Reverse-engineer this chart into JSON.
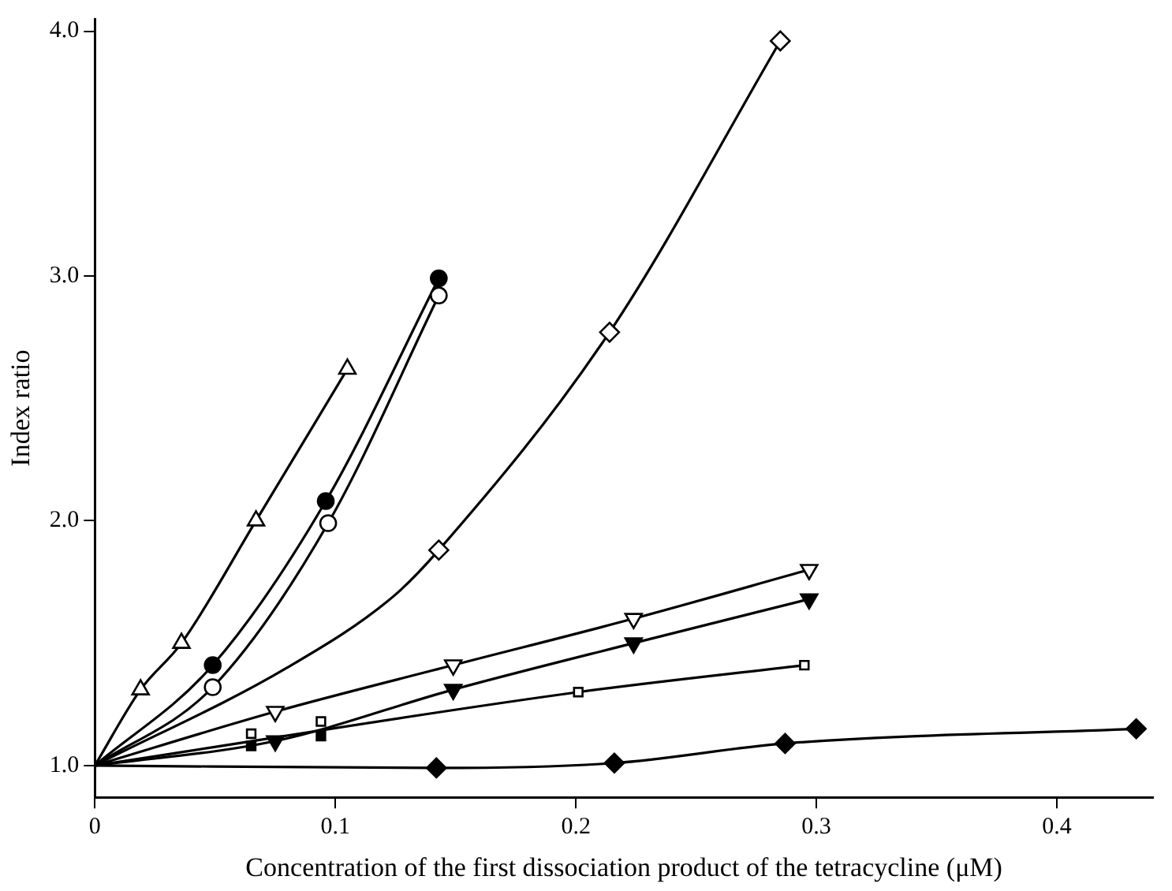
{
  "chart_data": {
    "type": "scatter",
    "xlabel": "Concentration of the first dissociation product of the tetracycline (μM)",
    "ylabel": "Index ratio",
    "xlim": [
      0,
      0.44
    ],
    "ylim": [
      0.87,
      4.05
    ],
    "xticks": [
      0,
      {
        "value": 0.1,
        "label": "0.1"
      },
      {
        "value": 0.2,
        "label": "0.2"
      },
      {
        "value": 0.3,
        "label": "0.3"
      },
      {
        "value": 0.4,
        "label": "0.4"
      }
    ],
    "yticks": [
      {
        "value": 1,
        "label": "1.0"
      },
      {
        "value": 2,
        "label": "2.0"
      },
      {
        "value": 3,
        "label": "3.0"
      },
      {
        "value": 4,
        "label": "4.0"
      }
    ],
    "grid": false,
    "legend": false,
    "series": [
      {
        "type": "line",
        "marker": "none",
        "color": "#000000",
        "x": [
          0,
          0.019,
          0.036,
          0.067,
          0.105
        ],
        "values": [
          1,
          1.31,
          1.5,
          2.0,
          2.62
        ]
      },
      {
        "type": "line",
        "marker": "none",
        "color": "#000000",
        "x": [
          0,
          0.049,
          0.096,
          0.143
        ],
        "values": [
          1,
          1.41,
          2.08,
          2.99
        ]
      },
      {
        "type": "line",
        "marker": "none",
        "color": "#000000",
        "x": [
          0,
          0.049,
          0.097,
          0.143
        ],
        "values": [
          1,
          1.32,
          1.99,
          2.92
        ]
      },
      {
        "type": "line",
        "marker": "none",
        "color": "#000000",
        "x": [
          0,
          0.08,
          0.124,
          0.143,
          0.214,
          0.285
        ],
        "values": [
          1,
          1.4,
          1.69,
          1.88,
          2.77,
          3.96
        ]
      },
      {
        "type": "line",
        "marker": "none",
        "color": "#000000",
        "x": [
          0,
          0.075,
          0.149,
          0.224,
          0.297
        ],
        "values": [
          1,
          1.22,
          1.41,
          1.6,
          1.8
        ]
      },
      {
        "type": "line",
        "marker": "none",
        "color": "#000000",
        "x": [
          0,
          0.075,
          0.149,
          0.224,
          0.297
        ],
        "values": [
          1,
          1.1,
          1.31,
          1.5,
          1.68
        ]
      },
      {
        "type": "line",
        "marker": "none",
        "color": "#000000",
        "x": [
          0,
          0.201,
          0.295
        ],
        "values": [
          1,
          1.3,
          1.41
        ]
      },
      {
        "type": "line",
        "marker": "none",
        "color": "#000000",
        "x": [
          0,
          0.142,
          0.216,
          0.287,
          0.433
        ],
        "values": [
          1,
          0.99,
          1.01,
          1.09,
          1.15
        ]
      },
      {
        "marker": "triangle",
        "color": "#ffffff",
        "x": [
          0.019,
          0.036,
          0.067,
          0.105
        ],
        "values": [
          1.31,
          1.5,
          2.0,
          2.62
        ]
      },
      {
        "marker": "circle",
        "color": "#000000",
        "x": [
          0.049,
          0.096,
          0.143
        ],
        "values": [
          1.41,
          2.08,
          2.99
        ]
      },
      {
        "marker": "circle",
        "color": "#ffffff",
        "x": [
          0.049,
          0.097,
          0.143
        ],
        "values": [
          1.32,
          1.99,
          2.92
        ]
      },
      {
        "marker": "diamond",
        "color": "#ffffff",
        "x": [
          0.143,
          0.214,
          0.285
        ],
        "values": [
          1.88,
          2.77,
          3.96
        ]
      },
      {
        "marker": "triangle-down",
        "color": "#ffffff",
        "x": [
          0.075,
          0.149,
          0.224,
          0.297
        ],
        "values": [
          1.22,
          1.41,
          1.6,
          1.8
        ]
      },
      {
        "marker": "triangle-down",
        "color": "#000000",
        "x": [
          0.075,
          0.149,
          0.224,
          0.297
        ],
        "values": [
          1.1,
          1.31,
          1.5,
          1.68
        ]
      },
      {
        "marker": "square",
        "color": "#ffffff",
        "x": [
          0.065,
          0.094
        ],
        "values": [
          1.13,
          1.18
        ]
      },
      {
        "marker": "square",
        "color": "#000000",
        "x": [
          0.065,
          0.094
        ],
        "values": [
          1.08,
          1.12
        ]
      },
      {
        "marker": "square",
        "color": "#ffffff",
        "x": [
          0.201,
          0.295
        ],
        "values": [
          1.3,
          1.41
        ]
      },
      {
        "marker": "diamond",
        "color": "#000000",
        "x": [
          0.142,
          0.216,
          0.287,
          0.433
        ],
        "values": [
          0.99,
          1.01,
          1.09,
          1.15
        ]
      }
    ]
  }
}
